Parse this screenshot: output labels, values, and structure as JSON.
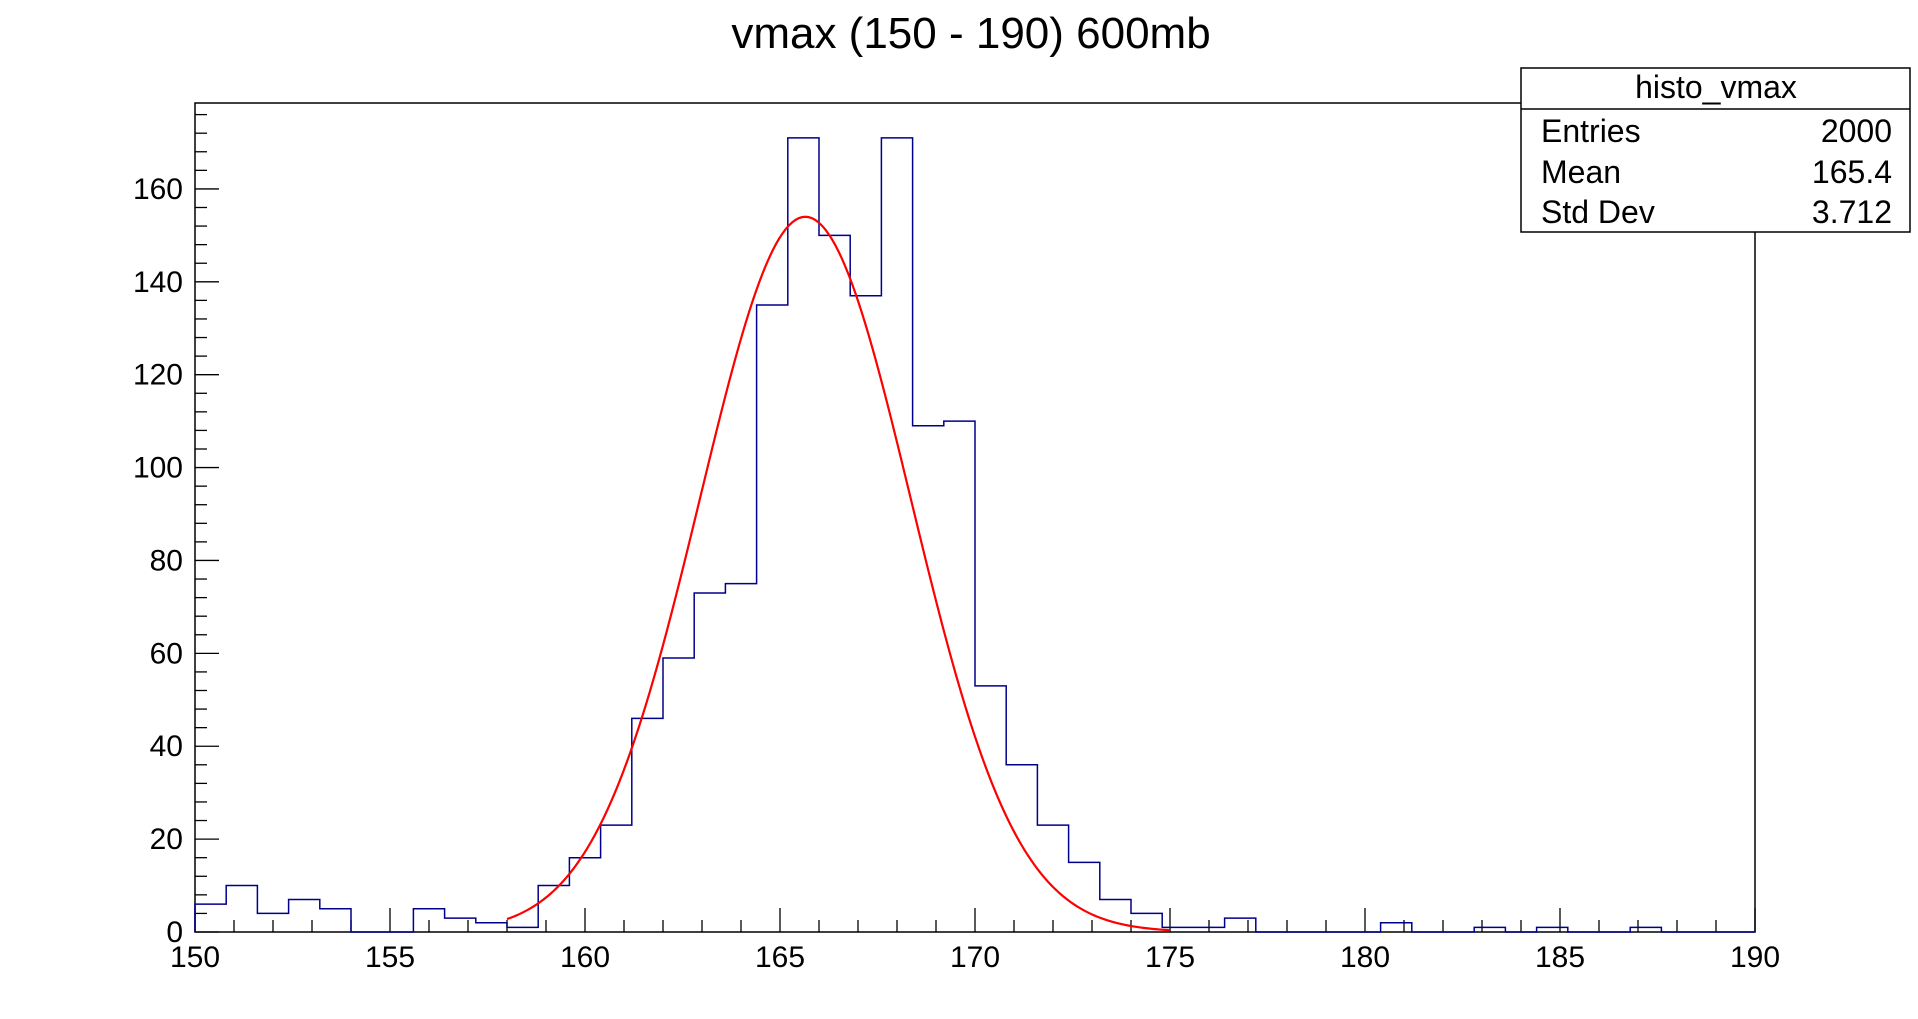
{
  "chart_data": {
    "type": "histogram",
    "title": "vmax (150 - 190) 600mb",
    "xlabel": "",
    "ylabel": "",
    "xlim": [
      150,
      190
    ],
    "ylim": [
      0,
      178.5
    ],
    "bin_width": 0.8,
    "bin_start": 150,
    "x_ticks": [
      150,
      155,
      160,
      165,
      170,
      175,
      180,
      185,
      190
    ],
    "y_ticks": [
      0,
      20,
      40,
      60,
      80,
      100,
      120,
      140,
      160
    ],
    "series": [
      {
        "kind": "histogram",
        "color": "#00008b",
        "values": [
          6,
          10,
          4,
          7,
          5,
          0,
          0,
          5,
          3,
          2,
          1,
          10,
          16,
          23,
          46,
          59,
          73,
          75,
          135,
          171,
          150,
          137,
          171,
          109,
          110,
          53,
          36,
          23,
          15,
          7,
          4,
          1,
          1,
          3,
          0,
          0,
          0,
          0,
          2,
          0,
          0,
          1,
          0,
          1,
          0,
          0,
          1,
          0,
          0,
          0
        ]
      },
      {
        "kind": "fit",
        "function": "gaus",
        "color": "#ff0000",
        "constant": 154,
        "mean": 165.65,
        "sigma": 2.7,
        "range": [
          158,
          175
        ]
      }
    ],
    "stats_box": {
      "name": "histo_vmax",
      "rows": [
        {
          "label": "Entries",
          "value": "2000"
        },
        {
          "label": "Mean",
          "value": "165.4"
        },
        {
          "label": "Std Dev",
          "value": "3.712"
        }
      ]
    },
    "grid": false
  }
}
